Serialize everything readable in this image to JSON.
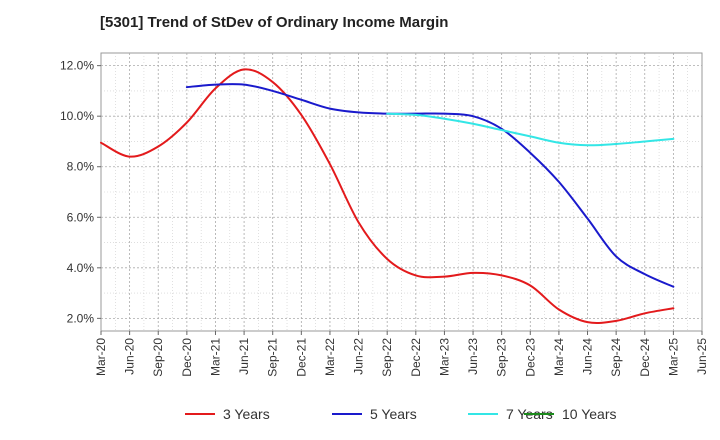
{
  "chart_data": {
    "type": "line",
    "title": "[5301]  Trend of StDev of Ordinary Income Margin",
    "xlabel": "",
    "ylabel": "",
    "ylim": [
      1.5,
      12.5
    ],
    "yticks": [
      2.0,
      4.0,
      6.0,
      8.0,
      10.0,
      12.0
    ],
    "ytick_labels": [
      "2.0%",
      "4.0%",
      "6.0%",
      "8.0%",
      "10.0%",
      "12.0%"
    ],
    "x_tick_labels": [
      "Mar-20",
      "Jun-20",
      "Sep-20",
      "Dec-20",
      "Mar-21",
      "Jun-21",
      "Sep-21",
      "Dec-21",
      "Mar-22",
      "Jun-22",
      "Sep-22",
      "Dec-22",
      "Mar-23",
      "Jun-23",
      "Sep-23",
      "Dec-23",
      "Mar-24",
      "Jun-24",
      "Sep-24",
      "Dec-24",
      "Mar-25",
      "Jun-25"
    ],
    "grid": true,
    "legend_position": "bottom",
    "series": [
      {
        "name": "3 Years",
        "color": "#e31a1c",
        "x": [
          "Mar-20",
          "Jun-20",
          "Sep-20",
          "Dec-20",
          "Mar-21",
          "Jun-21",
          "Sep-21",
          "Dec-21",
          "Mar-22",
          "Jun-22",
          "Sep-22",
          "Dec-22",
          "Mar-23",
          "Jun-23",
          "Sep-23",
          "Dec-23",
          "Mar-24",
          "Jun-24",
          "Sep-24",
          "Dec-24",
          "Mar-25"
        ],
        "values": [
          8.95,
          8.4,
          8.8,
          9.75,
          11.1,
          11.85,
          11.35,
          10.05,
          8.1,
          5.8,
          4.35,
          3.7,
          3.65,
          3.8,
          3.7,
          3.3,
          2.35,
          1.85,
          1.9,
          2.2,
          2.4
        ]
      },
      {
        "name": "5 Years",
        "color": "#1a1acc",
        "x": [
          "Dec-20",
          "Mar-21",
          "Jun-21",
          "Sep-21",
          "Dec-21",
          "Mar-22",
          "Jun-22",
          "Sep-22",
          "Dec-22",
          "Mar-23",
          "Jun-23",
          "Sep-23",
          "Dec-23",
          "Mar-24",
          "Jun-24",
          "Sep-24",
          "Dec-24",
          "Mar-25"
        ],
        "values": [
          11.15,
          11.25,
          11.25,
          11.0,
          10.65,
          10.3,
          10.15,
          10.1,
          10.1,
          10.1,
          10.0,
          9.5,
          8.55,
          7.4,
          5.95,
          4.45,
          3.75,
          3.25
        ]
      },
      {
        "name": "7 Years",
        "color": "#33e6e6",
        "x": [
          "Sep-22",
          "Dec-22",
          "Mar-23",
          "Jun-23",
          "Sep-23",
          "Dec-23",
          "Mar-24",
          "Jun-24",
          "Sep-24",
          "Dec-24",
          "Mar-25"
        ],
        "values": [
          10.1,
          10.05,
          9.9,
          9.7,
          9.45,
          9.2,
          8.95,
          8.85,
          8.9,
          9.0,
          9.1
        ]
      },
      {
        "name": "10 Years",
        "color": "#1a8a1a",
        "x": [],
        "values": []
      }
    ]
  }
}
